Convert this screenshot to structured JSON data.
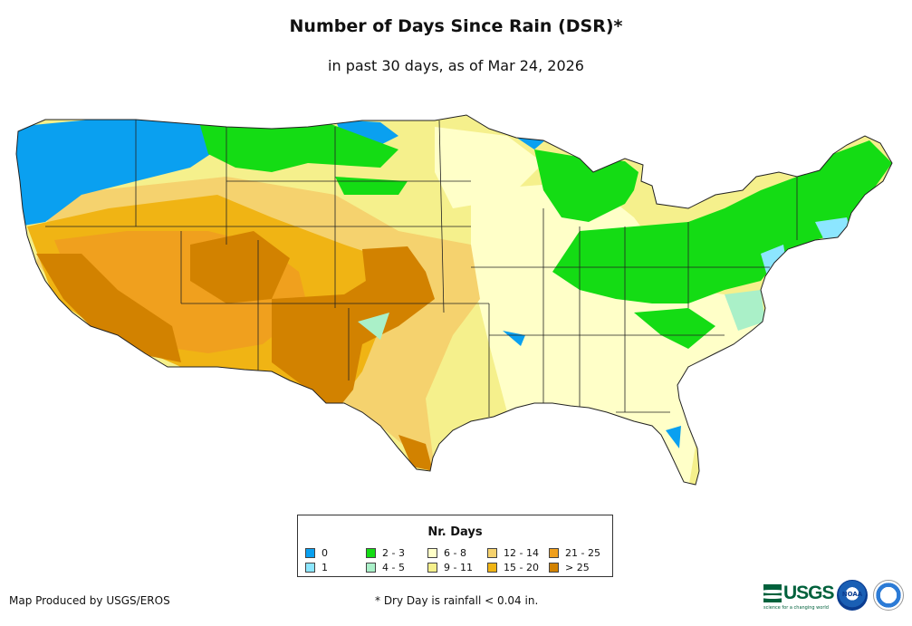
{
  "title": "Number of Days Since Rain (DSR)*",
  "subtitle": "in past 30 days, as of Mar 24, 2026",
  "legend": {
    "title": "Nr. Days",
    "items": [
      {
        "label": "0",
        "color": "#0aa0f0"
      },
      {
        "label": "1",
        "color": "#8ce6ff"
      },
      {
        "label": "2 - 3",
        "color": "#14dc14"
      },
      {
        "label": "4 - 5",
        "color": "#aaf0c8"
      },
      {
        "label": "6 - 8",
        "color": "#ffffc8"
      },
      {
        "label": "9 - 11",
        "color": "#f5f08c"
      },
      {
        "label": "12 - 14",
        "color": "#f5d26e"
      },
      {
        "label": "15 - 20",
        "color": "#f0b414"
      },
      {
        "label": "21 - 25",
        "color": "#f0a01e"
      },
      {
        "label": "> 25",
        "color": "#d28200"
      }
    ]
  },
  "credit": "Map Produced by USGS/EROS",
  "footnote": "* Dry Day is rainfall < 0.04 in.",
  "logos": {
    "usgs": "USGS",
    "usgs_tagline": "science for a changing world",
    "noaa": "NOAA"
  }
}
